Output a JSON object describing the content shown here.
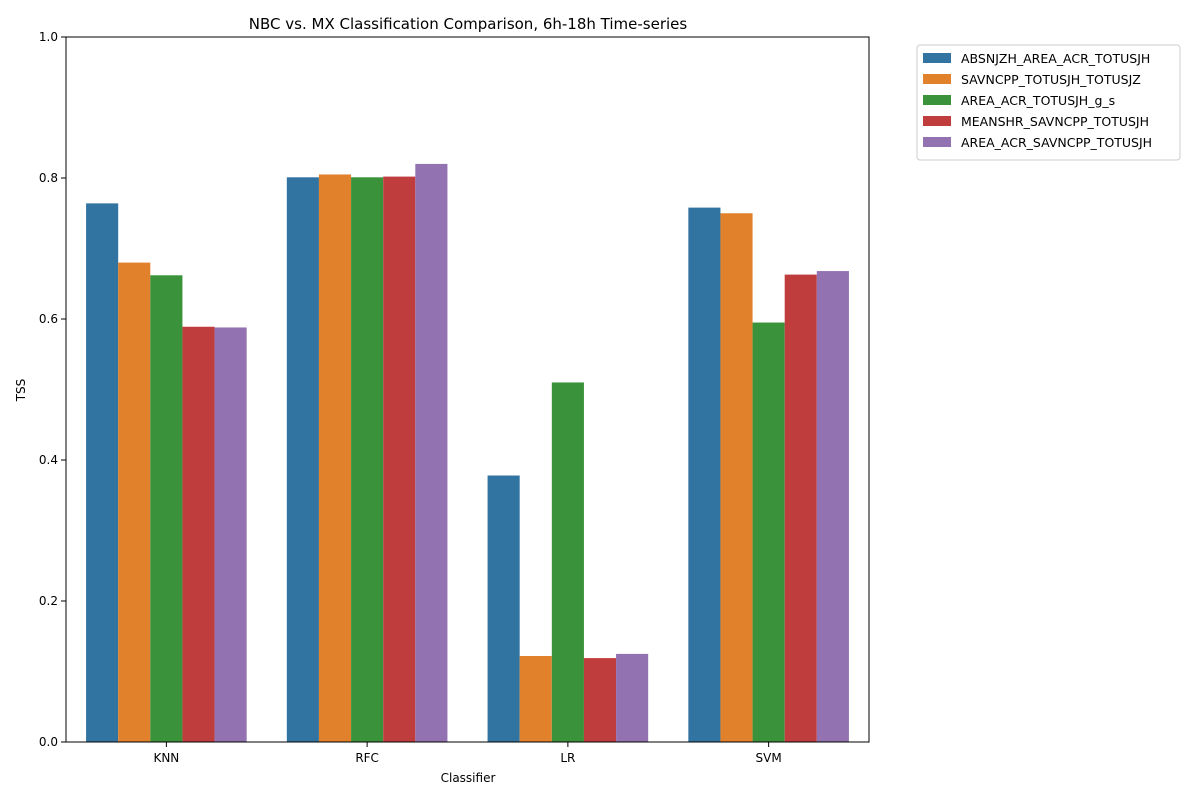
{
  "chart_data": {
    "type": "bar",
    "title": "NBC vs. MX Classification Comparison, 6h-18h Time-series",
    "xlabel": "Classifier",
    "ylabel": "TSS",
    "ylim": [
      0,
      1
    ],
    "yticks": [
      "0.0",
      "0.2",
      "0.4",
      "0.6",
      "0.8",
      "1.0"
    ],
    "categories": [
      "KNN",
      "RFC",
      "LR",
      "SVM"
    ],
    "legend_position": "outside-top-right",
    "grid": false,
    "series": [
      {
        "name": "ABSNJZH_AREA_ACR_TOTUSJH",
        "color": "#3274a1",
        "values": [
          0.764,
          0.801,
          0.378,
          0.758
        ]
      },
      {
        "name": "SAVNCPP_TOTUSJH_TOTUSJZ",
        "color": "#e1812c",
        "values": [
          0.68,
          0.805,
          0.122,
          0.75
        ]
      },
      {
        "name": "AREA_ACR_TOTUSJH_g_s",
        "color": "#3a923a",
        "values": [
          0.662,
          0.801,
          0.51,
          0.595
        ]
      },
      {
        "name": "MEANSHR_SAVNCPP_TOTUSJH",
        "color": "#c03d3e",
        "values": [
          0.589,
          0.802,
          0.119,
          0.663
        ]
      },
      {
        "name": "AREA_ACR_SAVNCPP_TOTUSJH",
        "color": "#9372b2",
        "values": [
          0.588,
          0.82,
          0.125,
          0.668
        ]
      }
    ]
  }
}
